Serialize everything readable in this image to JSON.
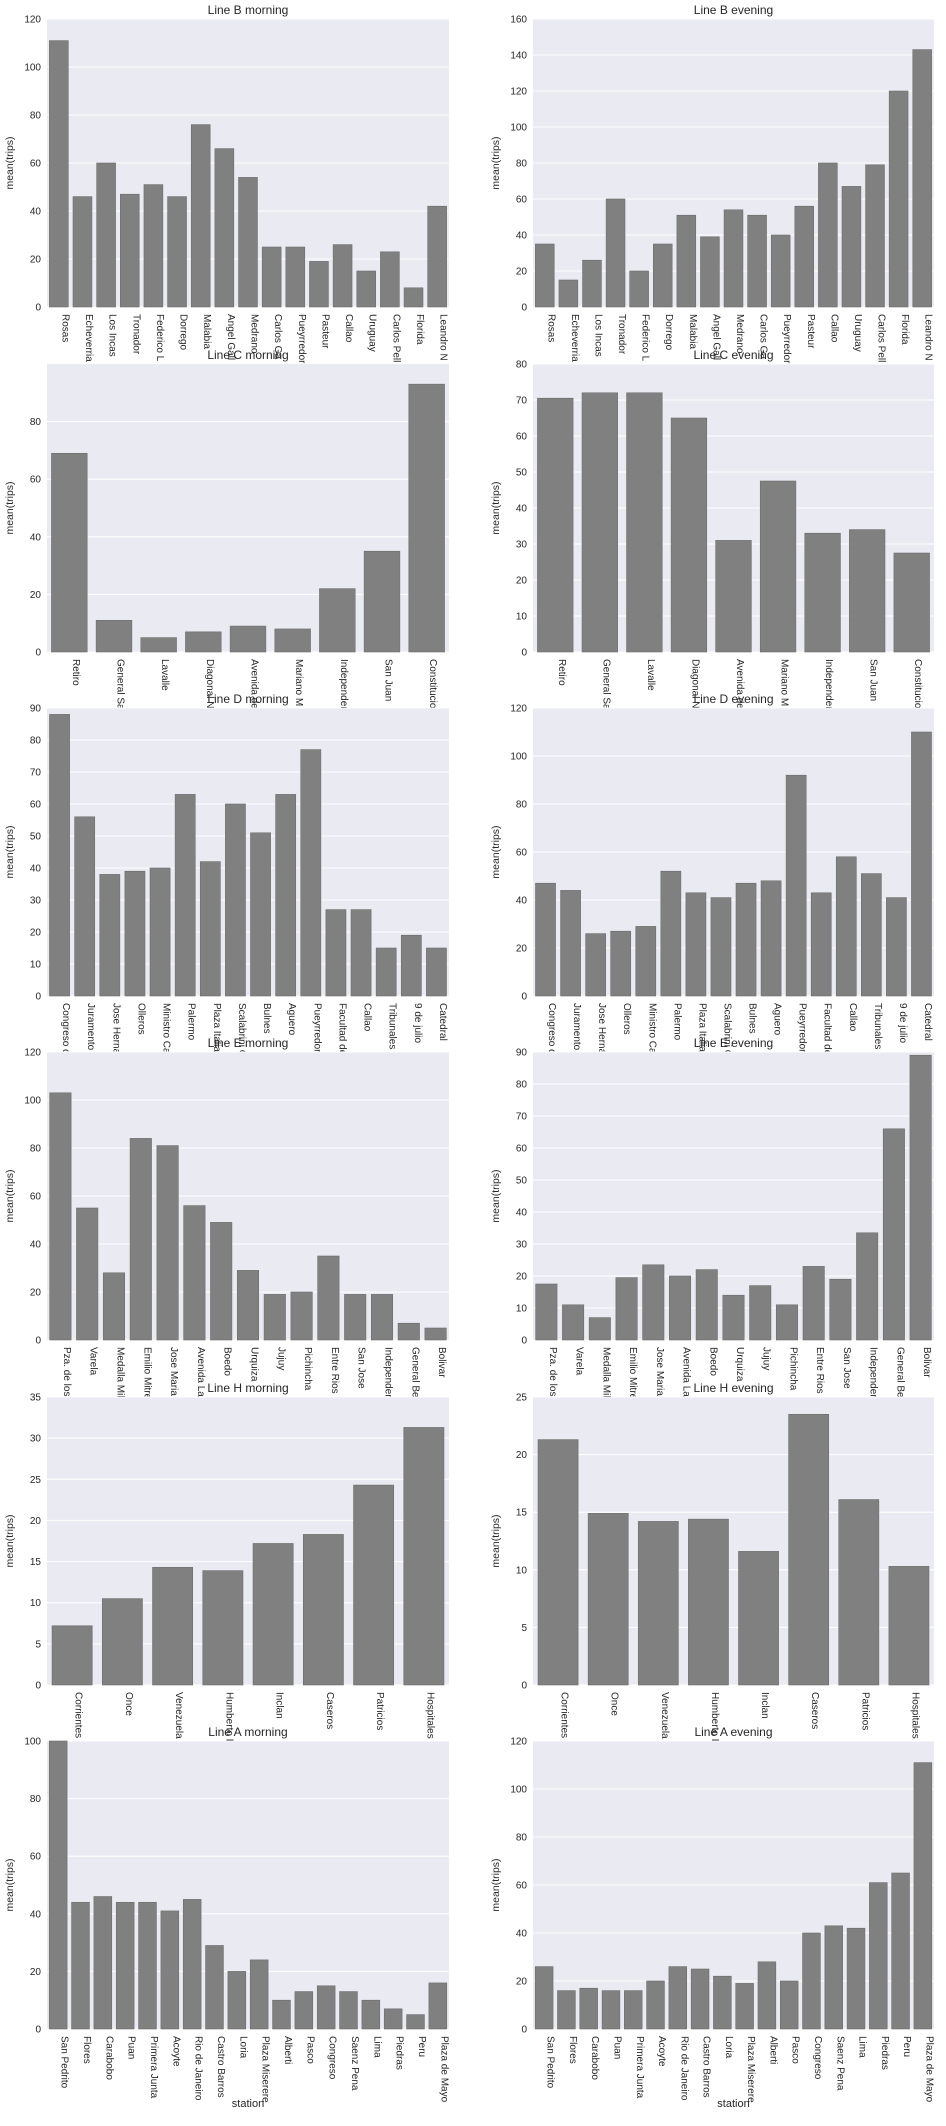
{
  "figure": {
    "xlabel": "station"
  },
  "chart_data": [
    {
      "type": "bar",
      "title": "Line B morning",
      "ylabel": "mean(trips)",
      "xlabel": "",
      "ylim": [
        0,
        120
      ],
      "yticks": [
        0,
        20,
        40,
        60,
        80,
        100,
        120
      ],
      "grid": true,
      "bar_color": "#808080",
      "categories": [
        "Rosas",
        "Echeverria",
        "Los Incas",
        "Tronador",
        "Federico L",
        "Dorrego",
        "Malabia",
        "Angel Gall",
        "Medrano",
        "Carlos Ga",
        "Pueyrredor",
        "Pasteur",
        "Callao",
        "Uruguay",
        "Carlos Pell",
        "Florida",
        "Leandro N"
      ],
      "values": [
        111,
        46,
        60,
        47,
        51,
        46,
        76,
        66,
        54,
        25,
        25,
        19,
        26,
        15,
        23,
        8,
        42
      ]
    },
    {
      "type": "bar",
      "title": "Line B evening",
      "ylabel": "mean(trips)",
      "xlabel": "",
      "ylim": [
        0,
        160
      ],
      "yticks": [
        0,
        20,
        40,
        60,
        80,
        100,
        120,
        140,
        160
      ],
      "grid": true,
      "bar_color": "#808080",
      "categories": [
        "Rosas",
        "Echeverria",
        "Los Incas",
        "Tronador",
        "Federico L",
        "Dorrego",
        "Malabia",
        "Angel Gall",
        "Medrano",
        "Carlos Ga",
        "Pueyrredor",
        "Pasteur",
        "Callao",
        "Uruguay",
        "Carlos Pell",
        "Florida",
        "Leandro N"
      ],
      "values": [
        35,
        15,
        26,
        60,
        20,
        35,
        51,
        39,
        54,
        51,
        40,
        56,
        80,
        67,
        79,
        120,
        143
      ]
    },
    {
      "type": "bar",
      "title": "Line C morning",
      "ylabel": "mean(trips)",
      "xlabel": "",
      "ylim": [
        0,
        100
      ],
      "yticks": [
        0,
        20,
        40,
        60,
        80
      ],
      "grid": true,
      "bar_color": "#808080",
      "categories": [
        "Retiro",
        "General Sa",
        "Lavalle",
        "Diagonal N",
        "Avenida de",
        "Mariano M",
        "Independer",
        "San Juan",
        "Constitucio"
      ],
      "values": [
        69,
        11,
        5,
        7,
        9,
        8,
        22,
        35,
        93
      ]
    },
    {
      "type": "bar",
      "title": "Line C evening",
      "ylabel": "mean(trips)",
      "xlabel": "",
      "ylim": [
        0,
        80
      ],
      "yticks": [
        0,
        10,
        20,
        30,
        40,
        50,
        60,
        70,
        80
      ],
      "grid": true,
      "bar_color": "#808080",
      "categories": [
        "Retiro",
        "General Sa",
        "Lavalle",
        "Diagonal N",
        "Avenida de",
        "Mariano M",
        "Independer",
        "San Juan",
        "Constitucio"
      ],
      "values": [
        70.5,
        72,
        72,
        65,
        31,
        47.5,
        33,
        34,
        27.5
      ]
    },
    {
      "type": "bar",
      "title": "Line D morning",
      "ylabel": "mean(trips)",
      "xlabel": "",
      "ylim": [
        0,
        90
      ],
      "yticks": [
        0,
        10,
        20,
        30,
        40,
        50,
        60,
        70,
        80,
        90
      ],
      "grid": true,
      "bar_color": "#808080",
      "categories": [
        "Congreso d",
        "Juramento",
        "Jose Hernan",
        "Olleros",
        "Ministro Ca",
        "Palermo",
        "Plaza Italia",
        "Scalabrini O",
        "Bulnes",
        "Aguero",
        "Pueyrredor",
        "Facultad de",
        "Callao",
        "Tribunales",
        "9 de julio",
        "Catedral"
      ],
      "values": [
        88,
        56,
        38,
        39,
        40,
        63,
        42,
        60,
        51,
        63,
        77,
        27,
        27,
        15,
        19,
        15
      ]
    },
    {
      "type": "bar",
      "title": "Line D evening",
      "ylabel": "mean(trips)",
      "xlabel": "",
      "ylim": [
        0,
        120
      ],
      "yticks": [
        0,
        20,
        40,
        60,
        80,
        100,
        120
      ],
      "grid": true,
      "bar_color": "#808080",
      "categories": [
        "Congreso d",
        "Juramento",
        "Jose Hernan",
        "Olleros",
        "Ministro Ca",
        "Palermo",
        "Plaza Italia",
        "Scalabrini O",
        "Bulnes",
        "Aguero",
        "Pueyrredor",
        "Facultad de",
        "Callao",
        "Tribunales",
        "9 de julio",
        "Catedral"
      ],
      "values": [
        47,
        44,
        26,
        27,
        29,
        52,
        43,
        41,
        47,
        48,
        92,
        43,
        58,
        51,
        41,
        110
      ]
    },
    {
      "type": "bar",
      "title": "Line E morning",
      "ylabel": "mean(trips)",
      "xlabel": "",
      "ylim": [
        0,
        120
      ],
      "yticks": [
        0,
        20,
        40,
        60,
        80,
        100,
        120
      ],
      "grid": true,
      "bar_color": "#808080",
      "categories": [
        "Pza. de los",
        "Varela",
        "Medalla Mil",
        "Emilio Mitre",
        "Jose Maria",
        "Avenida La",
        "Boedo",
        "Urquiza",
        "Jujuy",
        "Pichincha",
        "Entre Rios",
        "San Jose",
        "Independer",
        "General Be",
        "Bolivar"
      ],
      "values": [
        103,
        55,
        28,
        84,
        81,
        56,
        49,
        29,
        19,
        20,
        35,
        19,
        19,
        7,
        5
      ]
    },
    {
      "type": "bar",
      "title": "Line E evening",
      "ylabel": "mean(trips)",
      "xlabel": "",
      "ylim": [
        0,
        90
      ],
      "yticks": [
        0,
        10,
        20,
        30,
        40,
        50,
        60,
        70,
        80,
        90
      ],
      "grid": true,
      "bar_color": "#808080",
      "categories": [
        "Pza. de los",
        "Varela",
        "Medalla Mil",
        "Emilio Mitre",
        "Jose Maria",
        "Avenida La",
        "Boedo",
        "Urquiza",
        "Jujuy",
        "Pichincha",
        "Entre Rios",
        "San Jose",
        "Independer",
        "General Be",
        "Bolivar"
      ],
      "values": [
        17.5,
        11,
        7,
        19.5,
        23.5,
        20,
        22,
        14,
        17,
        11,
        23,
        19,
        33.5,
        66,
        89
      ]
    },
    {
      "type": "bar",
      "title": "Line H morning",
      "ylabel": "mean(trips)",
      "xlabel": "",
      "ylim": [
        0,
        35
      ],
      "yticks": [
        0,
        5,
        10,
        15,
        20,
        25,
        30,
        35
      ],
      "grid": true,
      "bar_color": "#808080",
      "categories": [
        "Corrientes",
        "Once",
        "Venezuela",
        "Humberto I",
        "Inclan",
        "Caseros",
        "Patricios",
        "Hospitales"
      ],
      "values": [
        7.2,
        10.5,
        14.3,
        13.9,
        17.2,
        18.3,
        24.3,
        31.3
      ]
    },
    {
      "type": "bar",
      "title": "Line H evening",
      "ylabel": "mean(trips)",
      "xlabel": "",
      "ylim": [
        0,
        25
      ],
      "yticks": [
        0,
        5,
        10,
        15,
        20,
        25
      ],
      "grid": true,
      "bar_color": "#808080",
      "categories": [
        "Corrientes",
        "Once",
        "Venezuela",
        "Humberto I",
        "Inclan",
        "Caseros",
        "Patricios",
        "Hospitales"
      ],
      "values": [
        21.3,
        14.9,
        14.2,
        14.4,
        11.6,
        23.5,
        16.1,
        10.3
      ]
    },
    {
      "type": "bar",
      "title": "Line A morning",
      "ylabel": "mean(trips)",
      "xlabel": "station",
      "ylim": [
        0,
        100
      ],
      "yticks": [
        0,
        20,
        40,
        60,
        80,
        100
      ],
      "grid": true,
      "bar_color": "#808080",
      "categories": [
        "San Pedrito",
        "Flores",
        "Carabobo",
        "Puan",
        "Primera Junta",
        "Acoyte",
        "Rio de Janeiro",
        "Castro Barros",
        "Loria",
        "Plaza Miserere",
        "Alberti",
        "Pasco",
        "Congreso",
        "Saenz Pena",
        "Lima",
        "Piedras",
        "Peru",
        "Plaza de Mayo"
      ],
      "values": [
        100,
        44,
        46,
        44,
        44,
        41,
        45,
        29,
        20,
        24,
        10,
        13,
        15,
        13,
        10,
        7,
        5,
        16
      ]
    },
    {
      "type": "bar",
      "title": "Line A evening",
      "ylabel": "mean(trips)",
      "xlabel": "station",
      "ylim": [
        0,
        120
      ],
      "yticks": [
        0,
        20,
        40,
        60,
        80,
        100,
        120
      ],
      "grid": true,
      "bar_color": "#808080",
      "categories": [
        "San Pedrito",
        "Flores",
        "Carabobo",
        "Puan",
        "Primera Junta",
        "Acoyte",
        "Rio de Janeiro",
        "Castro Barros",
        "Loria",
        "Plaza Miserere",
        "Alberti",
        "Pasco",
        "Congreso",
        "Saenz Pena",
        "Lima",
        "Piedras",
        "Peru",
        "Plaza de Mayo"
      ],
      "values": [
        26,
        16,
        17,
        16,
        16,
        20,
        26,
        25,
        22,
        19,
        28,
        20,
        40,
        43,
        42,
        61,
        65,
        111
      ]
    }
  ]
}
